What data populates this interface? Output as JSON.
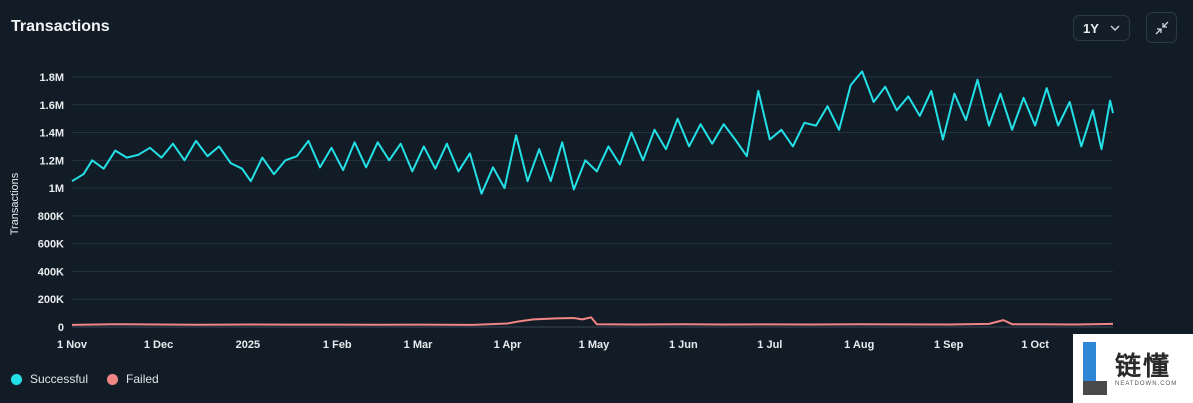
{
  "header": {
    "title": "Transactions",
    "range_value": "1Y",
    "range_icon": "chevron-down-icon",
    "collapse_icon": "minimize-icon"
  },
  "legend": [
    {
      "label": "Successful",
      "color": "#22e0e6"
    },
    {
      "label": "Failed",
      "color": "#f08585"
    }
  ],
  "watermark": {
    "cn": "链懂",
    "en": "NEATDOWN.COM"
  },
  "chart_data": {
    "type": "line",
    "ylabel": "Transactions",
    "xlabel": "",
    "ylim": [
      0,
      1800000
    ],
    "y_ticks": [
      0,
      200000,
      400000,
      600000,
      800000,
      1000000,
      1200000,
      1400000,
      1600000,
      1800000
    ],
    "y_tick_labels": [
      "0",
      "200K",
      "400K",
      "600K",
      "800K",
      "1M",
      "1.2M",
      "1.4M",
      "1.6M",
      "1.8M"
    ],
    "x_range": [
      "2024-11-01",
      "2025-10-28"
    ],
    "x_ticks": [
      "2024-11-01",
      "2024-12-01",
      "2025-01-01",
      "2025-02-01",
      "2025-03-01",
      "2025-04-01",
      "2025-05-01",
      "2025-06-01",
      "2025-07-01",
      "2025-08-01",
      "2025-09-01",
      "2025-10-01"
    ],
    "x_tick_labels": [
      "1 Nov",
      "1 Dec",
      "2025",
      "1 Feb",
      "1 Mar",
      "1 Apr",
      "1 May",
      "1 Jun",
      "1 Jul",
      "1 Aug",
      "1 Sep",
      "1 Oct"
    ],
    "grid": "horizontal",
    "series": [
      {
        "name": "Successful",
        "color": "#22e0e6",
        "points": [
          [
            "2024-11-01",
            1050000
          ],
          [
            "2024-11-05",
            1100000
          ],
          [
            "2024-11-08",
            1200000
          ],
          [
            "2024-11-12",
            1140000
          ],
          [
            "2024-11-16",
            1270000
          ],
          [
            "2024-11-20",
            1220000
          ],
          [
            "2024-11-24",
            1240000
          ],
          [
            "2024-11-28",
            1290000
          ],
          [
            "2024-12-02",
            1220000
          ],
          [
            "2024-12-06",
            1320000
          ],
          [
            "2024-12-10",
            1200000
          ],
          [
            "2024-12-14",
            1340000
          ],
          [
            "2024-12-18",
            1230000
          ],
          [
            "2024-12-22",
            1300000
          ],
          [
            "2024-12-26",
            1180000
          ],
          [
            "2024-12-30",
            1140000
          ],
          [
            "2025-01-02",
            1050000
          ],
          [
            "2025-01-06",
            1220000
          ],
          [
            "2025-01-10",
            1100000
          ],
          [
            "2025-01-14",
            1200000
          ],
          [
            "2025-01-18",
            1230000
          ],
          [
            "2025-01-22",
            1340000
          ],
          [
            "2025-01-26",
            1150000
          ],
          [
            "2025-01-30",
            1290000
          ],
          [
            "2025-02-03",
            1130000
          ],
          [
            "2025-02-07",
            1330000
          ],
          [
            "2025-02-11",
            1150000
          ],
          [
            "2025-02-15",
            1330000
          ],
          [
            "2025-02-19",
            1200000
          ],
          [
            "2025-02-23",
            1320000
          ],
          [
            "2025-02-27",
            1120000
          ],
          [
            "2025-03-03",
            1300000
          ],
          [
            "2025-03-07",
            1140000
          ],
          [
            "2025-03-11",
            1320000
          ],
          [
            "2025-03-15",
            1120000
          ],
          [
            "2025-03-19",
            1250000
          ],
          [
            "2025-03-23",
            960000
          ],
          [
            "2025-03-27",
            1150000
          ],
          [
            "2025-03-31",
            1000000
          ],
          [
            "2025-04-04",
            1380000
          ],
          [
            "2025-04-08",
            1050000
          ],
          [
            "2025-04-12",
            1280000
          ],
          [
            "2025-04-16",
            1050000
          ],
          [
            "2025-04-20",
            1330000
          ],
          [
            "2025-04-24",
            990000
          ],
          [
            "2025-04-28",
            1200000
          ],
          [
            "2025-05-02",
            1120000
          ],
          [
            "2025-05-06",
            1300000
          ],
          [
            "2025-05-10",
            1170000
          ],
          [
            "2025-05-14",
            1400000
          ],
          [
            "2025-05-18",
            1200000
          ],
          [
            "2025-05-22",
            1420000
          ],
          [
            "2025-05-26",
            1280000
          ],
          [
            "2025-05-30",
            1500000
          ],
          [
            "2025-06-03",
            1300000
          ],
          [
            "2025-06-07",
            1460000
          ],
          [
            "2025-06-11",
            1320000
          ],
          [
            "2025-06-15",
            1460000
          ],
          [
            "2025-06-19",
            1350000
          ],
          [
            "2025-06-23",
            1230000
          ],
          [
            "2025-06-27",
            1700000
          ],
          [
            "2025-07-01",
            1350000
          ],
          [
            "2025-07-05",
            1420000
          ],
          [
            "2025-07-09",
            1300000
          ],
          [
            "2025-07-13",
            1470000
          ],
          [
            "2025-07-17",
            1450000
          ],
          [
            "2025-07-21",
            1590000
          ],
          [
            "2025-07-25",
            1420000
          ],
          [
            "2025-07-29",
            1740000
          ],
          [
            "2025-08-02",
            1840000
          ],
          [
            "2025-08-06",
            1620000
          ],
          [
            "2025-08-10",
            1730000
          ],
          [
            "2025-08-14",
            1560000
          ],
          [
            "2025-08-18",
            1660000
          ],
          [
            "2025-08-22",
            1520000
          ],
          [
            "2025-08-26",
            1700000
          ],
          [
            "2025-08-30",
            1350000
          ],
          [
            "2025-09-03",
            1680000
          ],
          [
            "2025-09-07",
            1490000
          ],
          [
            "2025-09-11",
            1780000
          ],
          [
            "2025-09-15",
            1450000
          ],
          [
            "2025-09-19",
            1680000
          ],
          [
            "2025-09-23",
            1420000
          ],
          [
            "2025-09-27",
            1650000
          ],
          [
            "2025-10-01",
            1450000
          ],
          [
            "2025-10-05",
            1720000
          ],
          [
            "2025-10-09",
            1450000
          ],
          [
            "2025-10-13",
            1620000
          ],
          [
            "2025-10-17",
            1300000
          ],
          [
            "2025-10-21",
            1560000
          ],
          [
            "2025-10-24",
            1280000
          ],
          [
            "2025-10-27",
            1630000
          ],
          [
            "2025-10-28",
            1540000
          ]
        ]
      },
      {
        "name": "Failed",
        "color": "#f08585",
        "points": [
          [
            "2024-11-01",
            15000
          ],
          [
            "2024-11-15",
            20000
          ],
          [
            "2024-12-01",
            18000
          ],
          [
            "2024-12-15",
            16000
          ],
          [
            "2025-01-01",
            18000
          ],
          [
            "2025-01-15",
            17000
          ],
          [
            "2025-02-01",
            17000
          ],
          [
            "2025-02-15",
            16000
          ],
          [
            "2025-03-01",
            17000
          ],
          [
            "2025-03-20",
            15000
          ],
          [
            "2025-04-01",
            25000
          ],
          [
            "2025-04-05",
            40000
          ],
          [
            "2025-04-10",
            55000
          ],
          [
            "2025-04-18",
            62000
          ],
          [
            "2025-04-24",
            65000
          ],
          [
            "2025-04-27",
            55000
          ],
          [
            "2025-04-30",
            70000
          ],
          [
            "2025-05-02",
            20000
          ],
          [
            "2025-05-15",
            18000
          ],
          [
            "2025-06-01",
            20000
          ],
          [
            "2025-06-15",
            18000
          ],
          [
            "2025-07-01",
            19000
          ],
          [
            "2025-07-15",
            18000
          ],
          [
            "2025-08-01",
            20000
          ],
          [
            "2025-08-15",
            19000
          ],
          [
            "2025-09-01",
            18000
          ],
          [
            "2025-09-15",
            22000
          ],
          [
            "2025-09-20",
            50000
          ],
          [
            "2025-09-23",
            20000
          ],
          [
            "2025-10-01",
            20000
          ],
          [
            "2025-10-15",
            18000
          ],
          [
            "2025-10-28",
            22000
          ]
        ]
      }
    ]
  }
}
